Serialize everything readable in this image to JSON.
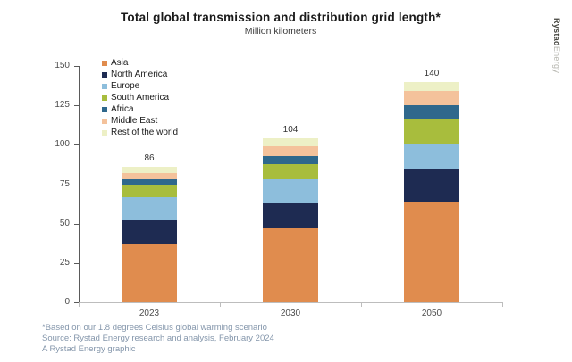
{
  "header": {
    "title": "Total global transmission and distribution grid length*",
    "subtitle": "Million kilometers"
  },
  "logo": {
    "part1": "Rystad",
    "part2": "Energy"
  },
  "chart_data": {
    "type": "bar",
    "stacked": true,
    "title": "Total global transmission and distribution grid length*",
    "subtitle": "Million kilometers",
    "categories": [
      "2023",
      "2030",
      "2050"
    ],
    "totals": [
      86,
      104,
      140
    ],
    "series": [
      {
        "name": "Asia",
        "color": "#E08C4E",
        "values": [
          37,
          47,
          64
        ]
      },
      {
        "name": "North America",
        "color": "#1E2B52",
        "values": [
          15,
          16,
          21
        ]
      },
      {
        "name": "Europe",
        "color": "#8DBEDC",
        "values": [
          15,
          15,
          15
        ]
      },
      {
        "name": "South America",
        "color": "#A8BD3D",
        "values": [
          7,
          10,
          16
        ]
      },
      {
        "name": "Africa",
        "color": "#2F688C",
        "values": [
          4,
          5,
          9
        ]
      },
      {
        "name": "Middle East",
        "color": "#F4C29B",
        "values": [
          4,
          6,
          9
        ]
      },
      {
        "name": "Rest of the world",
        "color": "#EDF0C6",
        "values": [
          4,
          5,
          6
        ]
      }
    ],
    "xlabel": "",
    "ylabel": "",
    "ylim": [
      0,
      150
    ],
    "ytick_step": 25,
    "grid": false,
    "legend_position": "upper-left"
  },
  "footer": {
    "line1": "*Based on our 1.8 degrees Celsius global warming scenario",
    "line2": "Source: Rystad Energy research and analysis, February 2024",
    "line3": "A Rystad Energy graphic"
  }
}
